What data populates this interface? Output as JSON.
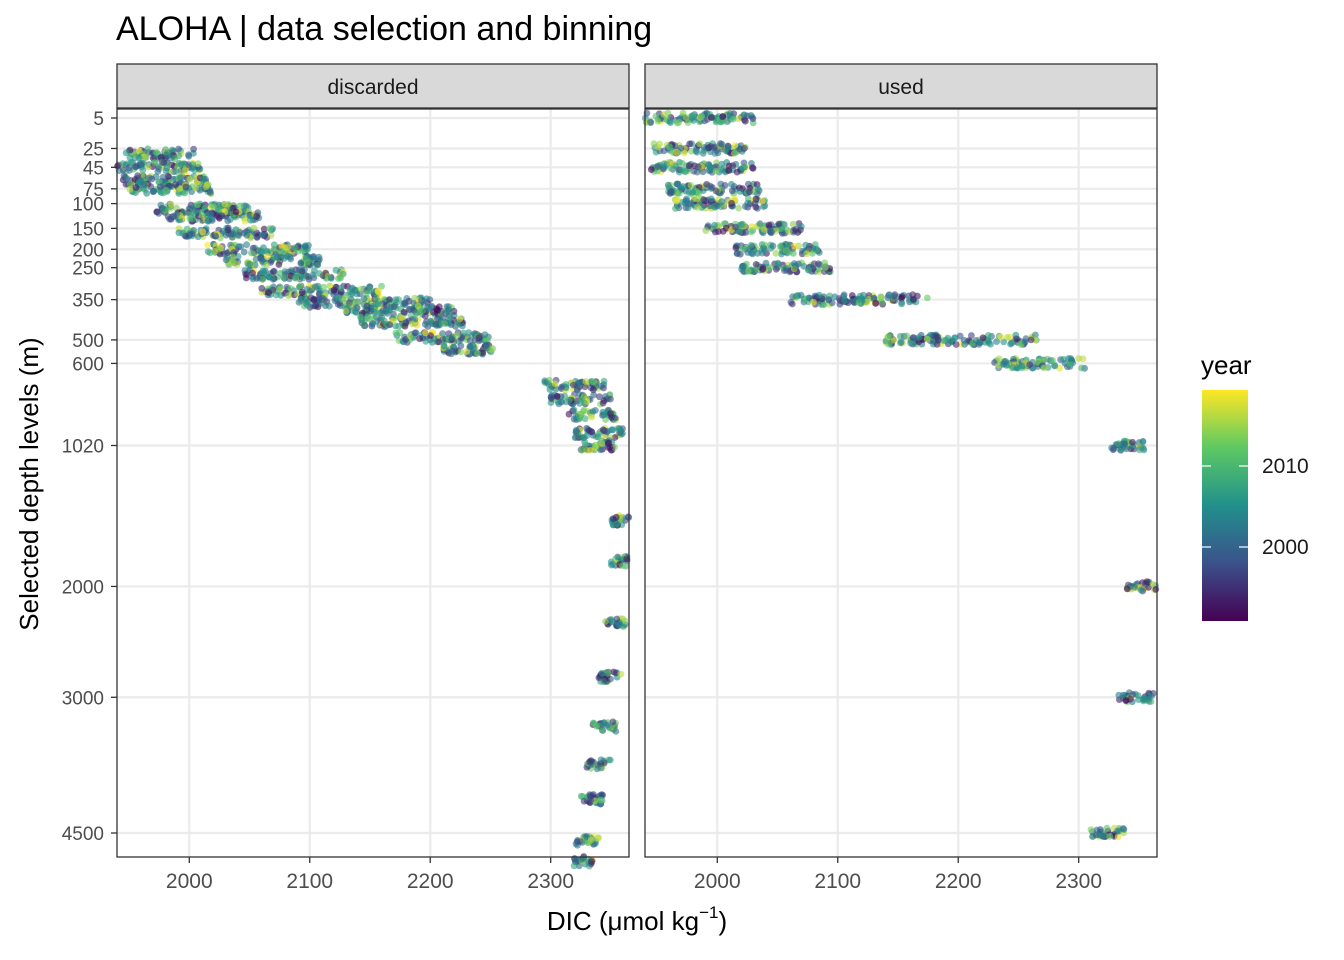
{
  "chart_data": {
    "type": "scatter",
    "title": "ALOHA | data selection and binning",
    "xlabel_main": "DIC (μmol kg",
    "xlabel_sup": "−1",
    "xlabel_close": ")",
    "ylabel": "Selected depth levels (m)",
    "xlim": [
      1940,
      2365
    ],
    "x_ticks": [
      2000,
      2100,
      2200,
      2300
    ],
    "y_ticks": [
      5,
      25,
      45,
      75,
      100,
      150,
      200,
      250,
      350,
      500,
      600,
      1020,
      2000,
      3000,
      4500
    ],
    "y_axis": "reversed, square-root scale",
    "grid": true,
    "legend": {
      "title": "year",
      "position": "right",
      "ticks": [
        "2010",
        "2000"
      ],
      "colormap": "viridis",
      "range": [
        1988,
        2019
      ]
    },
    "panels": [
      {
        "name": "discarded",
        "series": [
          {
            "depth": 30,
            "x": [
              1945,
              2005
            ]
          },
          {
            "depth": 45,
            "x": [
              1940,
              2010
            ]
          },
          {
            "depth": 62,
            "x": [
              1945,
              2015
            ]
          },
          {
            "depth": 75,
            "x": [
              1950,
              2020
            ]
          },
          {
            "depth": 110,
            "x": [
              1970,
              2050
            ]
          },
          {
            "depth": 125,
            "x": [
              1980,
              2060
            ]
          },
          {
            "depth": 160,
            "x": [
              1990,
              2070
            ]
          },
          {
            "depth": 200,
            "x": [
              2015,
              2100
            ]
          },
          {
            "depth": 230,
            "x": [
              2030,
              2110
            ]
          },
          {
            "depth": 270,
            "x": [
              2045,
              2130
            ]
          },
          {
            "depth": 320,
            "x": [
              2060,
              2160
            ]
          },
          {
            "depth": 360,
            "x": [
              2090,
              2200
            ]
          },
          {
            "depth": 390,
            "x": [
              2130,
              2220
            ]
          },
          {
            "depth": 430,
            "x": [
              2140,
              2230
            ]
          },
          {
            "depth": 490,
            "x": [
              2170,
              2250
            ]
          },
          {
            "depth": 540,
            "x": [
              2210,
              2255
            ]
          },
          {
            "depth": 700,
            "x": [
              2295,
              2345
            ]
          },
          {
            "depth": 770,
            "x": [
              2300,
              2350
            ]
          },
          {
            "depth": 850,
            "x": [
              2315,
              2355
            ]
          },
          {
            "depth": 950,
            "x": [
              2320,
              2360
            ]
          },
          {
            "depth": 1020,
            "x": [
              2325,
              2355
            ]
          },
          {
            "depth": 1500,
            "x": [
              2350,
              2365
            ]
          },
          {
            "depth": 1800,
            "x": [
              2350,
              2365
            ]
          },
          {
            "depth": 2300,
            "x": [
              2345,
              2362
            ]
          },
          {
            "depth": 2800,
            "x": [
              2340,
              2360
            ]
          },
          {
            "depth": 3300,
            "x": [
              2335,
              2355
            ]
          },
          {
            "depth": 3700,
            "x": [
              2330,
              2350
            ]
          },
          {
            "depth": 4100,
            "x": [
              2325,
              2345
            ]
          },
          {
            "depth": 4600,
            "x": [
              2320,
              2340
            ]
          },
          {
            "depth": 4850,
            "x": [
              2318,
              2335
            ]
          }
        ]
      },
      {
        "name": "used",
        "series": [
          {
            "depth": 5,
            "x": [
              1940,
              2030
            ]
          },
          {
            "depth": 25,
            "x": [
              1945,
              2025
            ]
          },
          {
            "depth": 45,
            "x": [
              1945,
              2030
            ]
          },
          {
            "depth": 75,
            "x": [
              1958,
              2035
            ]
          },
          {
            "depth": 100,
            "x": [
              1965,
              2040
            ]
          },
          {
            "depth": 150,
            "x": [
              1990,
              2070
            ]
          },
          {
            "depth": 200,
            "x": [
              2015,
              2085
            ]
          },
          {
            "depth": 250,
            "x": [
              2020,
              2095
            ]
          },
          {
            "depth": 350,
            "x": [
              2060,
              2175
            ]
          },
          {
            "depth": 500,
            "x": [
              2140,
              2265
            ]
          },
          {
            "depth": 600,
            "x": [
              2230,
              2305
            ]
          },
          {
            "depth": 1020,
            "x": [
              2325,
              2355
            ]
          },
          {
            "depth": 2000,
            "x": [
              2340,
              2365
            ]
          },
          {
            "depth": 3000,
            "x": [
              2333,
              2362
            ]
          },
          {
            "depth": 4500,
            "x": [
              2310,
              2338
            ]
          }
        ]
      }
    ]
  }
}
